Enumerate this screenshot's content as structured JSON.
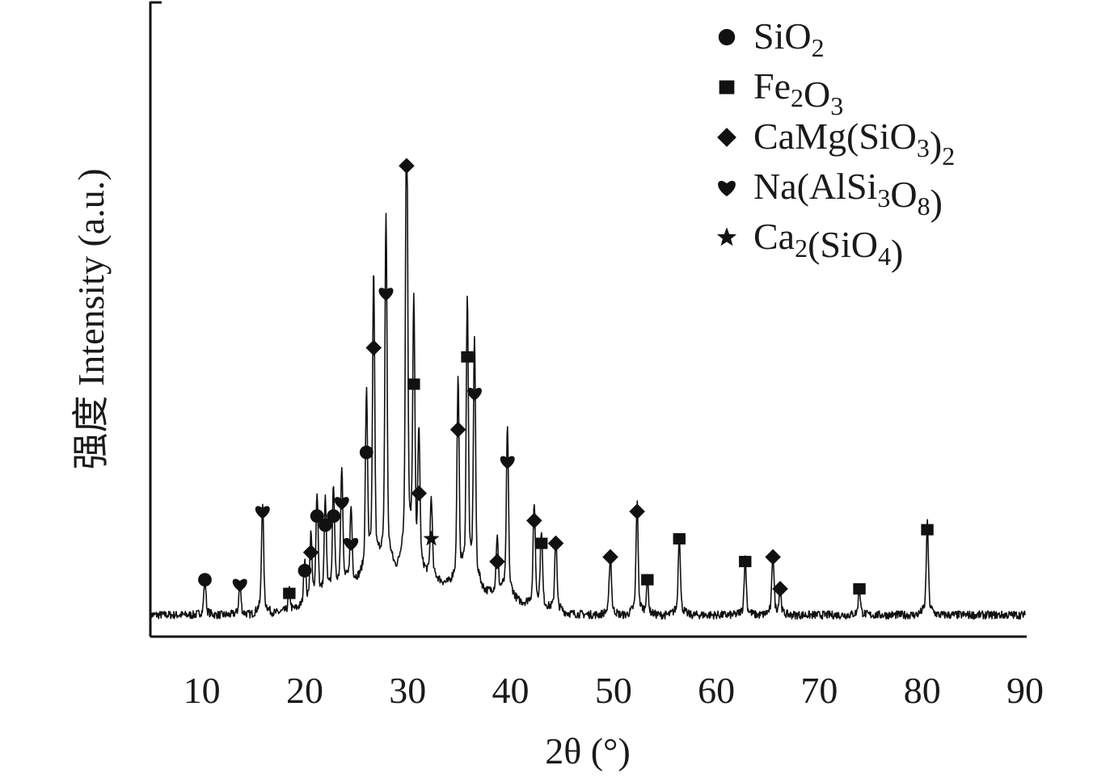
{
  "chart_data": {
    "type": "line",
    "xlabel": "2θ (°)",
    "ylabel": "强度 Intensity (a.u.)",
    "x_ticks": [
      "10",
      "20",
      "30",
      "40",
      "50",
      "60",
      "70",
      "80",
      "90"
    ],
    "xlim": [
      5,
      90
    ],
    "y_ticks_shown": false,
    "grid": false,
    "legend_position": "top-right",
    "legend": [
      {
        "marker": "circle",
        "formula": "SiO2",
        "label_parts": [
          [
            "SiO",
            ""
          ],
          [
            "2",
            "sub"
          ]
        ]
      },
      {
        "marker": "square",
        "formula": "Fe2O3",
        "label_parts": [
          [
            "Fe",
            ""
          ],
          [
            "2",
            "sub"
          ],
          [
            "O",
            ""
          ],
          [
            "3",
            "sub"
          ]
        ]
      },
      {
        "marker": "diamond",
        "formula": "CaMg(SiO3)2",
        "label_parts": [
          [
            "CaMg(SiO",
            ""
          ],
          [
            "3",
            "sub"
          ],
          [
            ")",
            ""
          ],
          [
            "2",
            "sub"
          ]
        ]
      },
      {
        "marker": "heart",
        "formula": "Na(AlSi3O8)",
        "label_parts": [
          [
            "Na(AlSi",
            ""
          ],
          [
            "3",
            "sub"
          ],
          [
            "O",
            ""
          ],
          [
            "8",
            "sub"
          ],
          [
            ")",
            ""
          ]
        ]
      },
      {
        "marker": "star",
        "formula": "Ca2(SiO4)",
        "label_parts": [
          [
            "Ca",
            ""
          ],
          [
            "2",
            "sub"
          ],
          [
            "(SiO",
            ""
          ],
          [
            "4",
            "sub"
          ],
          [
            ")",
            ""
          ]
        ]
      }
    ],
    "peaks": [
      {
        "x": 10.3,
        "y": 0.07,
        "phase": "circle"
      },
      {
        "x": 13.7,
        "y": 0.06,
        "phase": "heart"
      },
      {
        "x": 15.9,
        "y": 0.22,
        "phase": "heart"
      },
      {
        "x": 18.5,
        "y": 0.04,
        "phase": "square"
      },
      {
        "x": 20.0,
        "y": 0.09,
        "phase": "circle"
      },
      {
        "x": 20.6,
        "y": 0.13,
        "phase": "diamond"
      },
      {
        "x": 21.2,
        "y": 0.21,
        "phase": "circle"
      },
      {
        "x": 22.0,
        "y": 0.19,
        "phase": "circle"
      },
      {
        "x": 22.8,
        "y": 0.21,
        "phase": "circle"
      },
      {
        "x": 23.6,
        "y": 0.24,
        "phase": "heart"
      },
      {
        "x": 24.5,
        "y": 0.15,
        "phase": "heart"
      },
      {
        "x": 26.0,
        "y": 0.35,
        "phase": "circle"
      },
      {
        "x": 26.7,
        "y": 0.58,
        "phase": "diamond"
      },
      {
        "x": 27.9,
        "y": 0.7,
        "phase": "heart"
      },
      {
        "x": 29.9,
        "y": 0.98,
        "phase": "diamond"
      },
      {
        "x": 30.6,
        "y": 0.5,
        "phase": "square"
      },
      {
        "x": 31.1,
        "y": 0.26,
        "phase": "diamond"
      },
      {
        "x": 32.3,
        "y": 0.16,
        "phase": "star"
      },
      {
        "x": 34.9,
        "y": 0.4,
        "phase": "diamond"
      },
      {
        "x": 35.8,
        "y": 0.56,
        "phase": "square"
      },
      {
        "x": 36.5,
        "y": 0.48,
        "phase": "heart"
      },
      {
        "x": 38.7,
        "y": 0.11,
        "phase": "diamond"
      },
      {
        "x": 39.7,
        "y": 0.33,
        "phase": "heart"
      },
      {
        "x": 42.3,
        "y": 0.2,
        "phase": "diamond"
      },
      {
        "x": 43.0,
        "y": 0.15,
        "phase": "square"
      },
      {
        "x": 44.4,
        "y": 0.15,
        "phase": "diamond"
      },
      {
        "x": 49.7,
        "y": 0.12,
        "phase": "diamond"
      },
      {
        "x": 52.3,
        "y": 0.22,
        "phase": "diamond"
      },
      {
        "x": 53.3,
        "y": 0.07,
        "phase": "square"
      },
      {
        "x": 56.4,
        "y": 0.16,
        "phase": "square"
      },
      {
        "x": 62.8,
        "y": 0.11,
        "phase": "square"
      },
      {
        "x": 65.5,
        "y": 0.12,
        "phase": "diamond"
      },
      {
        "x": 66.2,
        "y": 0.05,
        "phase": "diamond"
      },
      {
        "x": 73.9,
        "y": 0.05,
        "phase": "square"
      },
      {
        "x": 80.5,
        "y": 0.18,
        "phase": "square"
      }
    ]
  }
}
